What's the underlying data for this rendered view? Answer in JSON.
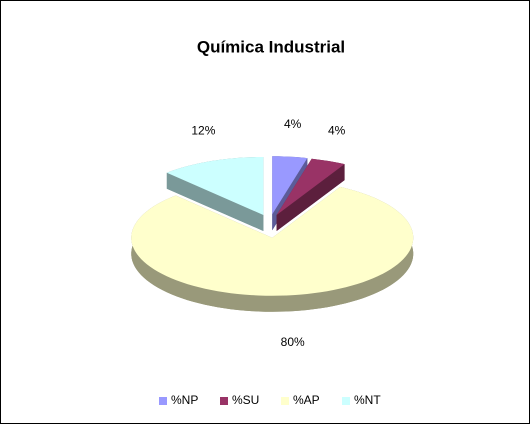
{
  "chart_data": {
    "type": "pie",
    "title": "Química Industrial",
    "categories": [
      "%NP",
      "%SU",
      "%AP",
      "%NT"
    ],
    "values": [
      4,
      4,
      80,
      12
    ],
    "value_labels": [
      "4%",
      "4%",
      "80%",
      "12%"
    ],
    "colors": [
      "#9999ff",
      "#993366",
      "#ffffcc",
      "#ccffff"
    ],
    "legend": "bottom"
  }
}
